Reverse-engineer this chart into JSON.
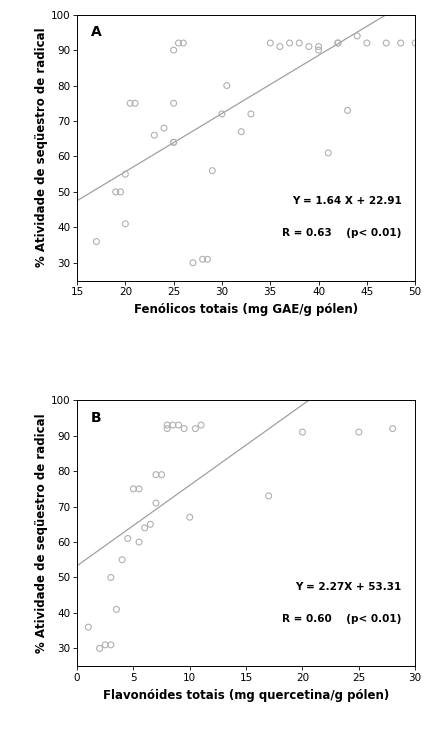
{
  "plot_A": {
    "x": [
      17,
      19,
      19.5,
      20,
      20,
      20.5,
      21,
      23,
      24,
      25,
      25,
      25,
      25,
      25.5,
      26,
      27,
      28,
      28.5,
      29,
      30,
      30.5,
      32,
      33,
      35,
      36,
      37,
      38,
      39,
      40,
      40,
      41,
      42,
      42,
      43,
      44,
      45,
      47,
      48.5,
      50
    ],
    "y": [
      36,
      50,
      50,
      41,
      55,
      75,
      75,
      66,
      68,
      64,
      64,
      75,
      90,
      92,
      92,
      30,
      31,
      31,
      56,
      72,
      80,
      67,
      72,
      92,
      91,
      92,
      92,
      91,
      91,
      90,
      61,
      92,
      92,
      73,
      94,
      92,
      92,
      92,
      92
    ],
    "slope": 1.64,
    "intercept": 22.91,
    "R": 0.63,
    "xlim": [
      15,
      50
    ],
    "ylim": [
      25,
      100
    ],
    "xticks": [
      15,
      20,
      25,
      30,
      35,
      40,
      45,
      50
    ],
    "yticks": [
      30,
      40,
      50,
      60,
      70,
      80,
      90,
      100
    ],
    "xlabel": "Fenólicos totais (mg GAE/g pólen)",
    "ylabel": "% Atividade de seqüestro de radical",
    "label": "A",
    "eq_line1": "Y = 1.64 X + 22.91",
    "eq_line2": "R = 0.63    (p< 0.01)"
  },
  "plot_B": {
    "x": [
      1,
      2,
      2.5,
      3,
      3,
      3.5,
      4,
      4.5,
      5,
      5.5,
      5.5,
      6,
      6.5,
      7,
      7,
      7.5,
      8,
      8,
      8.5,
      9,
      9.5,
      10,
      10.5,
      11,
      17,
      20,
      25,
      28
    ],
    "y": [
      36,
      30,
      31,
      31,
      50,
      41,
      55,
      61,
      75,
      60,
      75,
      64,
      65,
      71,
      79,
      79,
      92,
      93,
      93,
      93,
      92,
      67,
      92,
      93,
      73,
      91,
      91,
      92
    ],
    "slope": 2.27,
    "intercept": 53.31,
    "R": 0.6,
    "xlim": [
      0,
      30
    ],
    "ylim": [
      25,
      100
    ],
    "xticks": [
      0,
      5,
      10,
      15,
      20,
      25,
      30
    ],
    "yticks": [
      30,
      40,
      50,
      60,
      70,
      80,
      90,
      100
    ],
    "xlabel": "Flavonóides totais (mg quercetina/g pólen)",
    "ylabel": "% Atividade de seqüestro de radical",
    "label": "B",
    "eq_line1": "Y = 2.27X + 53.31",
    "eq_line2": "R = 0.60    (p< 0.01)"
  },
  "scatter_color": "#b0b0b0",
  "line_color": "#a0a0a0",
  "marker_size": 18,
  "marker_lw": 0.8,
  "bg_color": "#ffffff",
  "font_size_label": 8.5,
  "font_size_tick": 7.5,
  "font_size_eq": 7.5,
  "font_size_panel": 10
}
